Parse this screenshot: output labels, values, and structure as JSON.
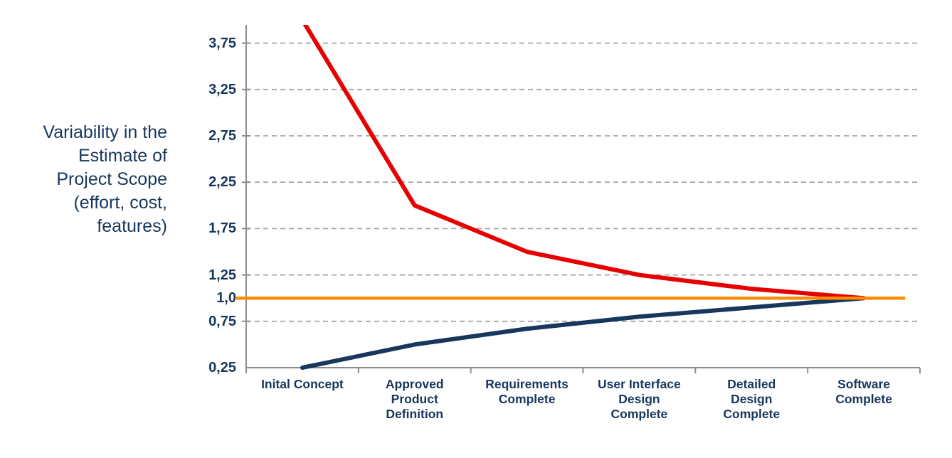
{
  "chart_data": {
    "type": "line",
    "title": "",
    "ylabel": "Variability in the Estimate of Project Scope (effort, cost, features)",
    "ylabel_lines": [
      "Variability in the",
      "Estimate of",
      "Project Scope",
      "(effort, cost,",
      "features)"
    ],
    "xlabel": "",
    "categories": [
      "Inital Concept",
      "Approved Product Definition",
      "Requirements Complete",
      "User Interface Design Complete",
      "Detailed Design Complete",
      "Software Complete"
    ],
    "category_label_lines": [
      [
        "Inital Concept"
      ],
      [
        "Approved",
        "Product",
        "Definition"
      ],
      [
        "Requirements",
        "Complete"
      ],
      [
        "User Interface",
        "Design",
        "Complete"
      ],
      [
        "Detailed",
        "Design",
        "Complete"
      ],
      [
        "Software",
        "Complete"
      ]
    ],
    "series": [
      {
        "name": "low-estimate",
        "color": "#17375d",
        "stroke_width": 6,
        "values": [
          0.25,
          0.5,
          0.67,
          0.8,
          0.9,
          1.0
        ]
      },
      {
        "name": "high-estimate",
        "color": "#e60000",
        "stroke_width": 6,
        "values": [
          4.0,
          2.0,
          1.5,
          1.25,
          1.1,
          1.0
        ]
      }
    ],
    "reference_line": {
      "name": "baseline",
      "value": 1.0,
      "color": "#ff8c00",
      "stroke_width": 4.5
    },
    "y_ticks": [
      {
        "label": "3,75",
        "value": 3.75,
        "gridline": true
      },
      {
        "label": "3,25",
        "value": 3.25,
        "gridline": true
      },
      {
        "label": "2,75",
        "value": 2.75,
        "gridline": true
      },
      {
        "label": "2,25",
        "value": 2.25,
        "gridline": true
      },
      {
        "label": "1,75",
        "value": 1.75,
        "gridline": true
      },
      {
        "label": "1,25",
        "value": 1.25,
        "gridline": true
      },
      {
        "label": "1,0",
        "value": 1.0,
        "gridline": false
      },
      {
        "label": "0,75",
        "value": 0.75,
        "gridline": true
      },
      {
        "label": "0,25",
        "value": 0.25,
        "gridline": false
      }
    ],
    "ylim": [
      0.25,
      3.95
    ],
    "grid": true,
    "legend_position": "none",
    "colors": {
      "grid": "#a6a6a6",
      "axis": "#8c8c8c",
      "text": "#17375d",
      "background": "#ffffff"
    }
  }
}
